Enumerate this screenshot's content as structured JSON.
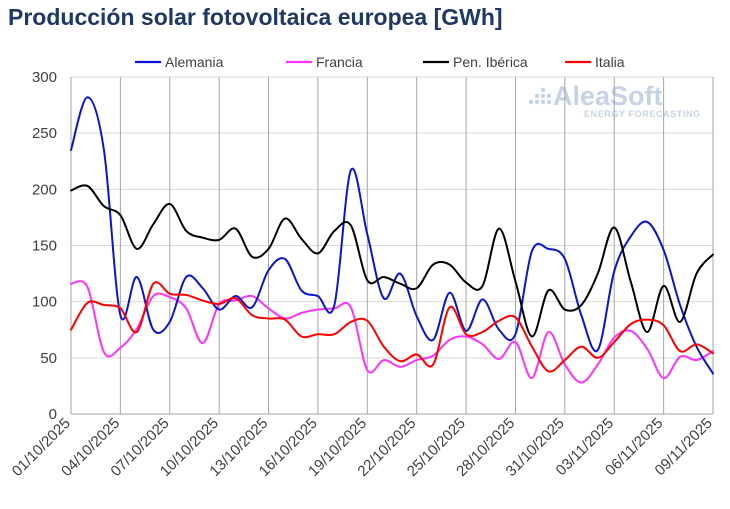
{
  "chart_data": {
    "type": "line",
    "title": "Producción solar fotovoltaica europea [GWh]",
    "xlabel": "",
    "ylabel": "",
    "ylim": [
      0,
      300
    ],
    "yticks": [
      0,
      50,
      100,
      150,
      200,
      250,
      300
    ],
    "x_days": 40,
    "x_tick_labels": [
      "01/10/2025",
      "04/10/2025",
      "07/10/2025",
      "10/10/2025",
      "13/10/2025",
      "16/10/2025",
      "19/10/2025",
      "22/10/2025",
      "25/10/2025",
      "28/10/2025",
      "31/10/2025",
      "03/11/2025",
      "06/11/2025",
      "09/11/2025"
    ],
    "legend_position": "top",
    "series": [
      {
        "name": "Alemania",
        "color": "#0a14d2",
        "values": [
          235,
          282,
          235,
          88,
          122,
          75,
          82,
          122,
          112,
          93,
          105,
          95,
          128,
          138,
          110,
          105,
          97,
          217,
          160,
          103,
          125,
          87,
          66,
          108,
          74,
          102,
          75,
          71,
          145,
          147,
          138,
          88,
          57,
          127,
          158,
          171,
          146,
          97,
          60,
          36
        ]
      },
      {
        "name": "Francia",
        "color": "#ff33ff",
        "values": [
          116,
          113,
          55,
          59,
          76,
          105,
          104,
          94,
          63,
          98,
          101,
          105,
          94,
          85,
          90,
          93,
          94,
          95,
          39,
          48,
          42,
          48,
          52,
          66,
          69,
          62,
          49,
          64,
          32,
          73,
          44,
          28,
          44,
          68,
          74,
          58,
          32,
          51,
          48,
          56
        ]
      },
      {
        "name": "Pen. Ibérica",
        "color": "#000000",
        "values": [
          199,
          203,
          185,
          177,
          147,
          169,
          187,
          163,
          157,
          155,
          165,
          140,
          147,
          174,
          156,
          143,
          163,
          168,
          119,
          122,
          116,
          112,
          133,
          133,
          117,
          114,
          165,
          118,
          69,
          110,
          93,
          97,
          125,
          166,
          118,
          73,
          114,
          82,
          125,
          142
        ]
      },
      {
        "name": "Italia",
        "color": "#ff0000",
        "values": [
          75,
          99,
          97,
          94,
          73,
          116,
          107,
          106,
          101,
          98,
          103,
          88,
          85,
          84,
          69,
          71,
          71,
          82,
          83,
          60,
          47,
          53,
          44,
          95,
          71,
          73,
          83,
          86,
          60,
          38,
          48,
          60,
          50,
          64,
          80,
          84,
          79,
          56,
          62,
          54
        ]
      }
    ]
  },
  "watermark": {
    "brand": "AleaSoft",
    "tagline": "ENERGY FORECASTING"
  }
}
